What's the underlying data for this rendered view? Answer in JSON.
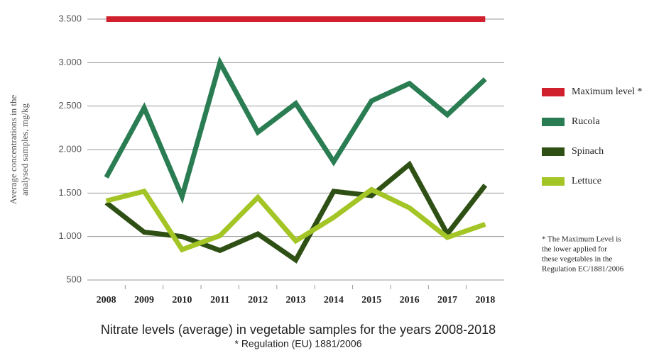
{
  "chart_data": {
    "type": "line",
    "title": "Nitrate levels (average) in vegetable samples for the years 2008-2018",
    "subtitle": "* Regulation (EU) 1881/2006",
    "y_label": [
      "Average concentrations in the",
      "analysed samples, mg/kg"
    ],
    "note": [
      "* The Maximum Level is",
      "the lower applied for",
      "these vegetables in the",
      "Regulation EC/1881/2006"
    ],
    "categories": [
      "2008",
      "2009",
      "2010",
      "2011",
      "2012",
      "2013",
      "2014",
      "2015",
      "2016",
      "2017",
      "2018"
    ],
    "series": [
      {
        "name": "Maximum level *",
        "color": "#d0202e",
        "values": [
          3500,
          3500,
          3500,
          3500,
          3500,
          3500,
          3500,
          3500,
          3500,
          3500,
          3500
        ]
      },
      {
        "name": "Rucola",
        "color": "#2a7d52",
        "values": [
          1680,
          2480,
          1460,
          3000,
          2200,
          2530,
          1860,
          2560,
          2760,
          2400,
          2810
        ]
      },
      {
        "name": "Spinach",
        "color": "#2e5014",
        "values": [
          1390,
          1050,
          1000,
          840,
          1030,
          730,
          1520,
          1470,
          1830,
          1030,
          1590
        ]
      },
      {
        "name": "Lettuce",
        "color": "#a4c526",
        "values": [
          1410,
          1520,
          850,
          1010,
          1450,
          950,
          1220,
          1540,
          1330,
          990,
          1140
        ]
      }
    ],
    "ylim": [
      500,
      3500
    ],
    "yticks": [
      {
        "value": 500,
        "label": "500"
      },
      {
        "value": 1000,
        "label": "1.000"
      },
      {
        "value": 1500,
        "label": "1.500"
      },
      {
        "value": 2000,
        "label": "2.000"
      },
      {
        "value": 2500,
        "label": "2.500"
      },
      {
        "value": 3000,
        "label": "3.000"
      },
      {
        "value": 3500,
        "label": "3.500"
      }
    ],
    "grid": true
  }
}
